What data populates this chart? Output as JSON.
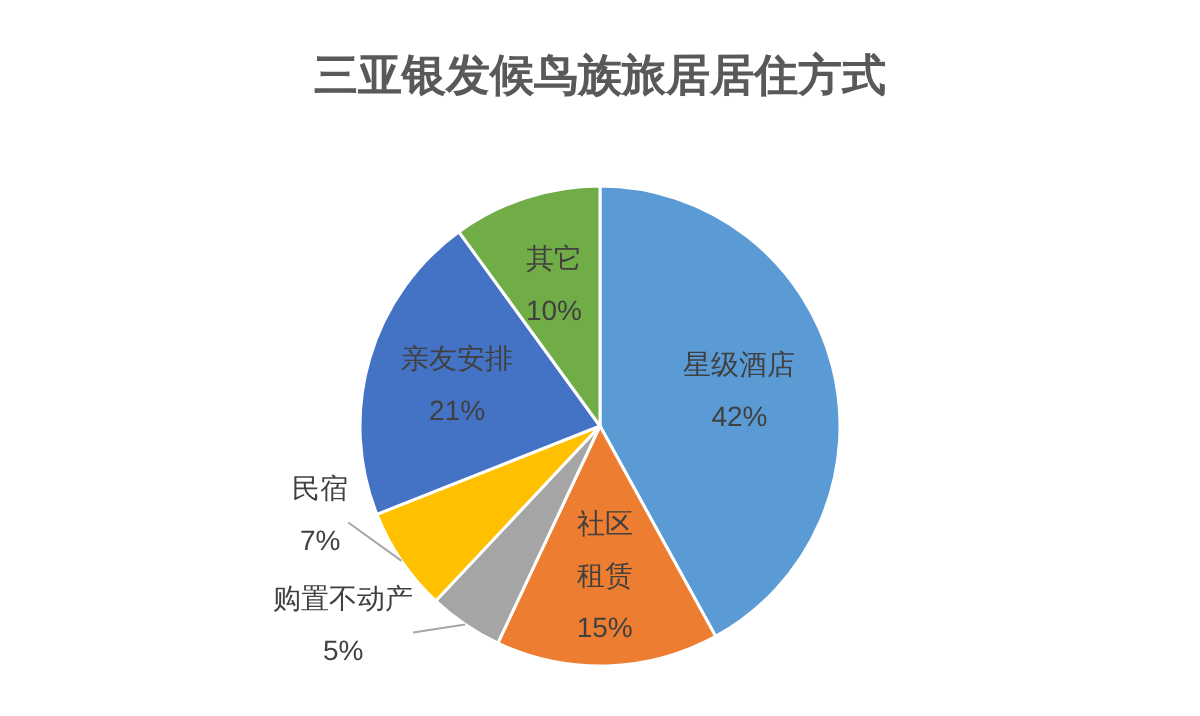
{
  "chart_data": {
    "type": "pie",
    "title": "三亚银发候鸟族旅居居住方式",
    "categories": [
      "星级酒店",
      "社区租赁",
      "购置不动产",
      "民宿",
      "亲友安排",
      "其它"
    ],
    "values": [
      42,
      15,
      5,
      7,
      21,
      10
    ],
    "colors": [
      "#5b9bd5",
      "#ed7d31",
      "#a5a5a5",
      "#ffc000",
      "#4472c4",
      "#70ad47"
    ],
    "value_labels": [
      "42%",
      "15%",
      "5%",
      "7%",
      "21%",
      "10%"
    ],
    "legend": false
  }
}
